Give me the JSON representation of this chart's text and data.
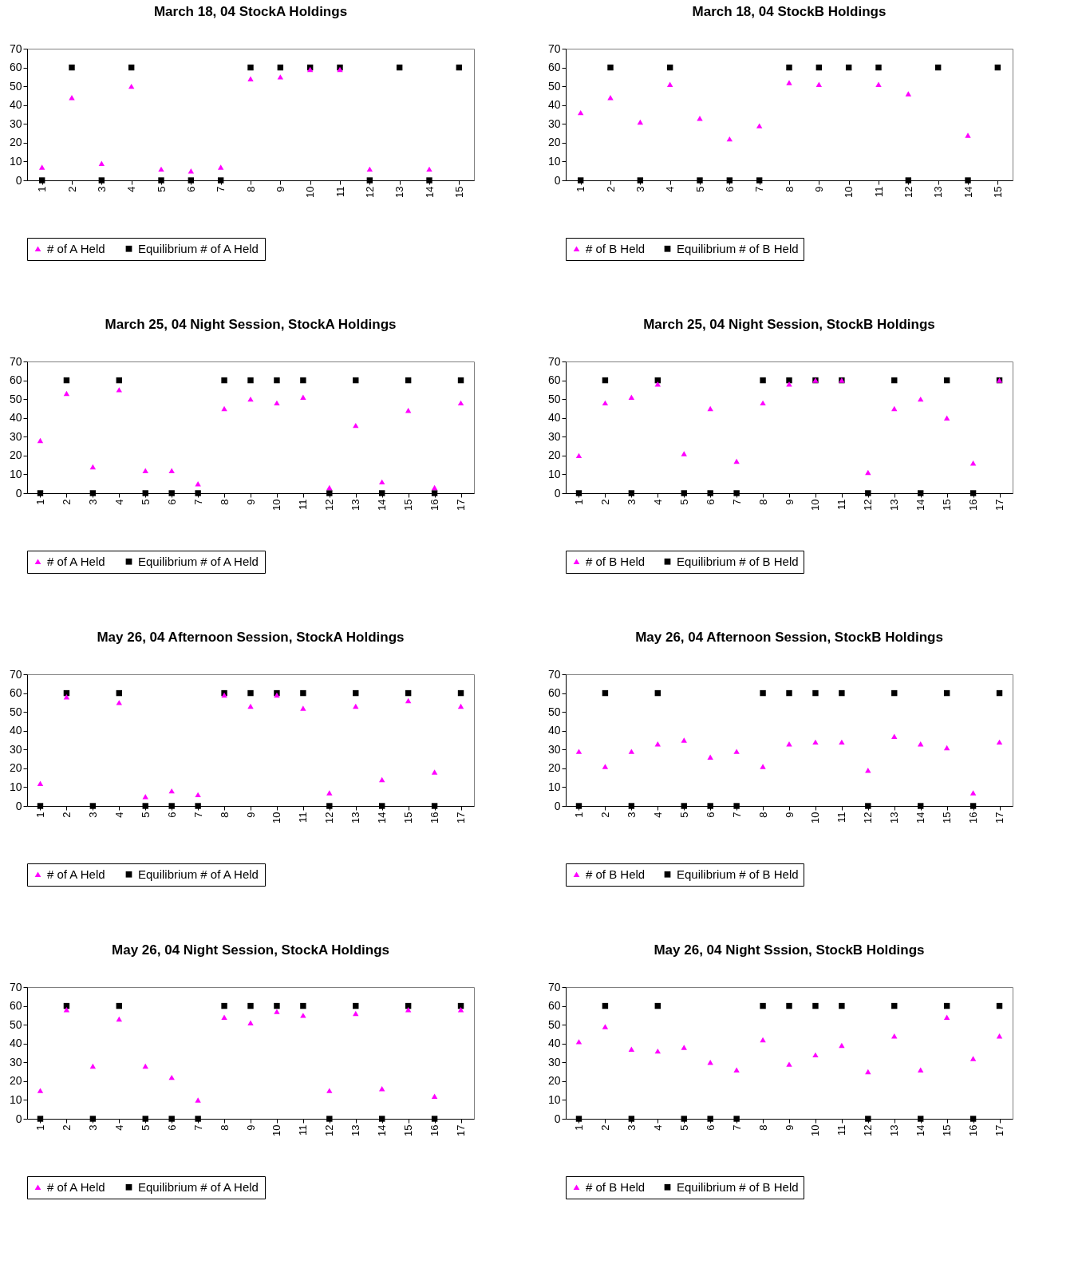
{
  "chart_data": [
    {
      "type": "scatter",
      "title": "March 18, 04 StockA Holdings",
      "categories": [
        "1",
        "2",
        "3",
        "4",
        "5",
        "6",
        "7",
        "8",
        "9",
        "10",
        "11",
        "12",
        "13",
        "14",
        "15"
      ],
      "ylim": [
        0,
        70
      ],
      "yticks": [
        0,
        10,
        20,
        30,
        40,
        50,
        60,
        70
      ],
      "grid": false,
      "legend": "bottom",
      "series": [
        {
          "name": "# of A Held",
          "color": "#ff00ff",
          "marker": "triangle",
          "values": [
            7,
            44,
            9,
            50,
            6,
            5,
            7,
            54,
            55,
            59,
            59,
            6,
            null,
            6,
            null
          ]
        },
        {
          "name": "Equilibrium # of A Held",
          "color": "#000000",
          "marker": "square",
          "values": [
            0,
            60,
            0,
            60,
            0,
            0,
            0,
            60,
            60,
            60,
            60,
            0,
            60,
            0,
            60
          ]
        }
      ]
    },
    {
      "type": "scatter",
      "title": "March 18, 04 StockB Holdings",
      "categories": [
        "1",
        "2",
        "3",
        "4",
        "5",
        "6",
        "7",
        "8",
        "9",
        "10",
        "11",
        "12",
        "13",
        "14",
        "15"
      ],
      "ylim": [
        0,
        70
      ],
      "yticks": [
        0,
        10,
        20,
        30,
        40,
        50,
        60,
        70
      ],
      "grid": false,
      "legend": "bottom",
      "series": [
        {
          "name": "# of B Held",
          "color": "#ff00ff",
          "marker": "triangle",
          "values": [
            36,
            44,
            31,
            51,
            33,
            22,
            29,
            52,
            51,
            null,
            51,
            46,
            null,
            24,
            null
          ]
        },
        {
          "name": "Equilibrium # of B Held",
          "color": "#000000",
          "marker": "square",
          "values": [
            0,
            60,
            0,
            60,
            0,
            0,
            0,
            60,
            60,
            60,
            60,
            0,
            60,
            0,
            60
          ]
        }
      ]
    },
    {
      "type": "scatter",
      "title": "March 25, 04 Night Session, StockA Holdings",
      "categories": [
        "1",
        "2",
        "3",
        "4",
        "5",
        "6",
        "7",
        "8",
        "9",
        "10",
        "11",
        "12",
        "13",
        "14",
        "15",
        "16",
        "17"
      ],
      "ylim": [
        0,
        70
      ],
      "yticks": [
        0,
        10,
        20,
        30,
        40,
        50,
        60,
        70
      ],
      "grid": false,
      "legend": "bottom",
      "series": [
        {
          "name": "# of A Held",
          "color": "#ff00ff",
          "marker": "triangle",
          "values": [
            28,
            53,
            14,
            55,
            12,
            12,
            5,
            45,
            50,
            48,
            51,
            3,
            36,
            6,
            44,
            3,
            48
          ]
        },
        {
          "name": "Equilibrium # of A Held",
          "color": "#000000",
          "marker": "square",
          "values": [
            0,
            60,
            0,
            60,
            0,
            0,
            0,
            60,
            60,
            60,
            60,
            0,
            60,
            0,
            60,
            0,
            60
          ]
        }
      ]
    },
    {
      "type": "scatter",
      "title": "March 25, 04 Night Session, StockB Holdings",
      "categories": [
        "1",
        "2",
        "3",
        "4",
        "5",
        "6",
        "7",
        "8",
        "9",
        "10",
        "11",
        "12",
        "13",
        "14",
        "15",
        "16",
        "17"
      ],
      "ylim": [
        0,
        70
      ],
      "yticks": [
        0,
        10,
        20,
        30,
        40,
        50,
        60,
        70
      ],
      "grid": false,
      "legend": "bottom",
      "series": [
        {
          "name": "# of B Held",
          "color": "#ff00ff",
          "marker": "triangle",
          "values": [
            20,
            48,
            51,
            58,
            21,
            45,
            17,
            48,
            58,
            60,
            60,
            11,
            45,
            50,
            40,
            16,
            60
          ]
        },
        {
          "name": "Equilibrium # of B Held",
          "color": "#000000",
          "marker": "square",
          "values": [
            0,
            60,
            0,
            60,
            0,
            0,
            0,
            60,
            60,
            60,
            60,
            0,
            60,
            0,
            60,
            0,
            60
          ]
        }
      ]
    },
    {
      "type": "scatter",
      "title": "May 26, 04 Afternoon Session, StockA Holdings",
      "categories": [
        "1",
        "2",
        "3",
        "4",
        "5",
        "6",
        "7",
        "8",
        "9",
        "10",
        "11",
        "12",
        "13",
        "14",
        "15",
        "16",
        "17"
      ],
      "ylim": [
        0,
        70
      ],
      "yticks": [
        0,
        10,
        20,
        30,
        40,
        50,
        60,
        70
      ],
      "grid": false,
      "legend": "bottom",
      "series": [
        {
          "name": "# of A Held",
          "color": "#ff00ff",
          "marker": "triangle",
          "values": [
            12,
            58,
            null,
            55,
            5,
            8,
            6,
            59,
            53,
            59,
            52,
            7,
            53,
            14,
            56,
            18,
            53
          ]
        },
        {
          "name": "Equilibrium # of A Held",
          "color": "#000000",
          "marker": "square",
          "values": [
            0,
            60,
            0,
            60,
            0,
            0,
            0,
            60,
            60,
            60,
            60,
            0,
            60,
            0,
            60,
            0,
            60
          ]
        }
      ]
    },
    {
      "type": "scatter",
      "title": "May 26, 04 Afternoon Session, StockB Holdings",
      "categories": [
        "1",
        "2",
        "3",
        "4",
        "5",
        "6",
        "7",
        "8",
        "9",
        "10",
        "11",
        "12",
        "13",
        "14",
        "15",
        "16",
        "17"
      ],
      "ylim": [
        0,
        70
      ],
      "yticks": [
        0,
        10,
        20,
        30,
        40,
        50,
        60,
        70
      ],
      "grid": false,
      "legend": "bottom",
      "series": [
        {
          "name": "# of B Held",
          "color": "#ff00ff",
          "marker": "triangle",
          "values": [
            29,
            21,
            29,
            33,
            35,
            26,
            29,
            21,
            33,
            34,
            34,
            19,
            37,
            33,
            31,
            7,
            34
          ]
        },
        {
          "name": "Equilibrium # of B Held",
          "color": "#000000",
          "marker": "square",
          "values": [
            0,
            60,
            0,
            60,
            0,
            0,
            0,
            60,
            60,
            60,
            60,
            0,
            60,
            0,
            60,
            0,
            60
          ]
        }
      ]
    },
    {
      "type": "scatter",
      "title": "May 26, 04 Night Session, StockA Holdings",
      "categories": [
        "1",
        "2",
        "3",
        "4",
        "5",
        "6",
        "7",
        "8",
        "9",
        "10",
        "11",
        "12",
        "13",
        "14",
        "15",
        "16",
        "17"
      ],
      "ylim": [
        0,
        70
      ],
      "yticks": [
        0,
        10,
        20,
        30,
        40,
        50,
        60,
        70
      ],
      "grid": false,
      "legend": "bottom",
      "series": [
        {
          "name": "# of A Held",
          "color": "#ff00ff",
          "marker": "triangle",
          "values": [
            15,
            58,
            28,
            53,
            28,
            22,
            10,
            54,
            51,
            57,
            55,
            15,
            56,
            16,
            58,
            12,
            58
          ]
        },
        {
          "name": "Equilibrium # of A Held",
          "color": "#000000",
          "marker": "square",
          "values": [
            0,
            60,
            0,
            60,
            0,
            0,
            0,
            60,
            60,
            60,
            60,
            0,
            60,
            0,
            60,
            0,
            60
          ]
        }
      ]
    },
    {
      "type": "scatter",
      "title": "May 26, 04 Night Sssion, StockB Holdings",
      "categories": [
        "1",
        "2",
        "3",
        "4",
        "5",
        "6",
        "7",
        "8",
        "9",
        "10",
        "11",
        "12",
        "13",
        "14",
        "15",
        "16",
        "17"
      ],
      "ylim": [
        0,
        70
      ],
      "yticks": [
        0,
        10,
        20,
        30,
        40,
        50,
        60,
        70
      ],
      "grid": false,
      "legend": "bottom",
      "series": [
        {
          "name": "# of B Held",
          "color": "#ff00ff",
          "marker": "triangle",
          "values": [
            41,
            49,
            37,
            36,
            38,
            30,
            26,
            42,
            29,
            34,
            39,
            25,
            44,
            26,
            54,
            32,
            44
          ]
        },
        {
          "name": "Equilibrium # of B Held",
          "color": "#000000",
          "marker": "square",
          "values": [
            0,
            60,
            0,
            60,
            0,
            0,
            0,
            60,
            60,
            60,
            60,
            0,
            60,
            0,
            60,
            0,
            60
          ]
        }
      ]
    }
  ]
}
